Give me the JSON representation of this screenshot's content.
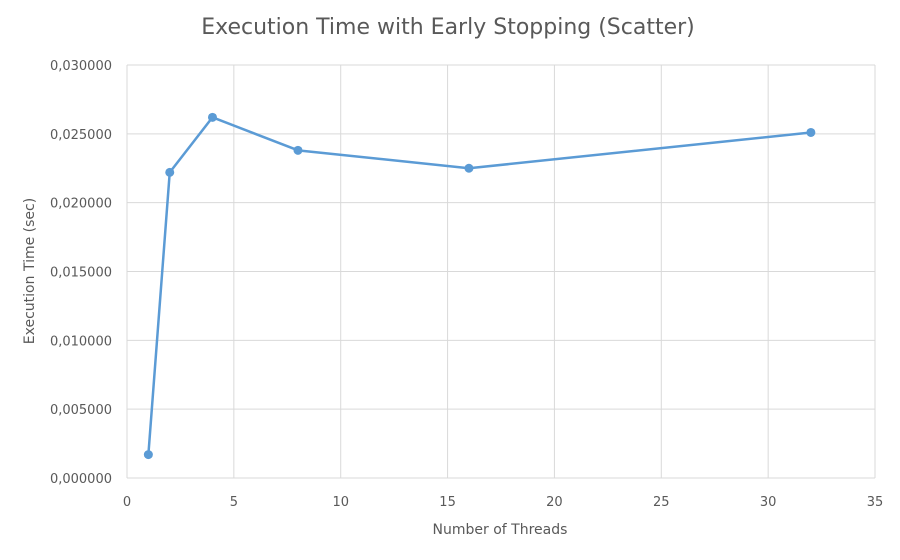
{
  "chart_data": {
    "type": "scatter",
    "title": "Execution Time with Early Stopping (Scatter)",
    "xlabel": "Number of Threads",
    "ylabel": "Execution Time (sec)",
    "xlim": [
      0,
      35
    ],
    "ylim": [
      0,
      0.03
    ],
    "x_ticks": [
      0,
      5,
      10,
      15,
      20,
      25,
      30,
      35
    ],
    "x_tick_labels": [
      "0",
      "5",
      "10",
      "15",
      "20",
      "25",
      "30",
      "35"
    ],
    "y_ticks": [
      0,
      0.005,
      0.01,
      0.015,
      0.02,
      0.025,
      0.03
    ],
    "y_tick_labels": [
      "0,000000",
      "0,005000",
      "0,010000",
      "0,015000",
      "0,020000",
      "0,025000",
      "0,030000"
    ],
    "grid": true,
    "lines_connected": true,
    "series": [
      {
        "color": "#5b9bd5",
        "x": [
          1,
          2,
          4,
          8,
          16,
          32
        ],
        "y": [
          0.0017,
          0.0222,
          0.0262,
          0.0238,
          0.0225,
          0.0251
        ]
      }
    ]
  }
}
